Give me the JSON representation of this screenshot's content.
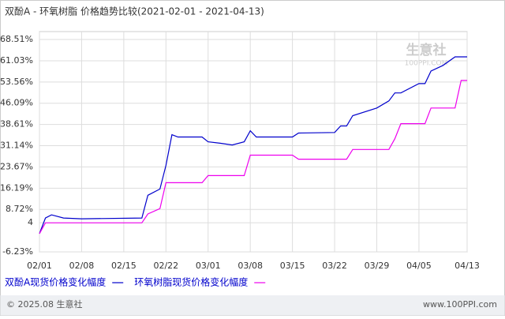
{
  "chart_data": {
    "type": "line",
    "title": "双酚A - 环氧树脂 价格趋势比较(2021-02-01 - 2021-04-13)",
    "watermark": "生意社",
    "watermark_sub": "100PPI.COM",
    "x": [
      "2021-02-01",
      "2021-02-02",
      "2021-02-03",
      "2021-02-05",
      "2021-02-08",
      "2021-02-18",
      "2021-02-19",
      "2021-02-21",
      "2021-02-22",
      "2021-02-23",
      "2021-02-24",
      "2021-02-28",
      "2021-03-01",
      "2021-03-03",
      "2021-03-05",
      "2021-03-07",
      "2021-03-08",
      "2021-03-09",
      "2021-03-15",
      "2021-03-16",
      "2021-03-22",
      "2021-03-23",
      "2021-03-24",
      "2021-03-25",
      "2021-03-29",
      "2021-03-31",
      "2021-04-01",
      "2021-04-02",
      "2021-04-05",
      "2021-04-06",
      "2021-04-07",
      "2021-04-09",
      "2021-04-11",
      "2021-04-12",
      "2021-04-13"
    ],
    "series": [
      {
        "name": "双酚A现货价格变化幅度",
        "color": "#0000cc",
        "values": [
          0.2,
          5.7,
          6.8,
          5.7,
          5.4,
          5.7,
          13.7,
          15.9,
          24.2,
          35.0,
          34.2,
          34.2,
          32.5,
          32.0,
          31.4,
          32.5,
          36.4,
          34.2,
          34.2,
          35.6,
          35.8,
          38.1,
          38.1,
          41.7,
          44.4,
          46.9,
          49.7,
          49.7,
          53.0,
          53.0,
          57.4,
          59.4,
          62.4,
          62.4,
          62.4
        ]
      },
      {
        "name": "环氧树脂现货价格变化幅度",
        "color": "#ee00ee",
        "values": [
          0.2,
          4.0,
          4.0,
          4.0,
          4.0,
          4.0,
          7.1,
          9.0,
          18.1,
          18.1,
          18.1,
          18.1,
          20.6,
          20.6,
          20.6,
          20.6,
          27.8,
          27.8,
          27.8,
          26.4,
          26.4,
          26.4,
          26.4,
          29.8,
          29.8,
          29.8,
          33.6,
          38.9,
          38.9,
          38.9,
          44.4,
          44.4,
          44.4,
          54.1,
          54.1
        ]
      }
    ],
    "xlim": [
      "2021-02-01",
      "2021-04-13"
    ],
    "xticks": [
      {
        "value": "2021-02-01",
        "label": "02/01"
      },
      {
        "value": "2021-02-08",
        "label": "02/08"
      },
      {
        "value": "2021-02-15",
        "label": "02/15"
      },
      {
        "value": "2021-02-22",
        "label": "02/22"
      },
      {
        "value": "2021-03-01",
        "label": "03/01"
      },
      {
        "value": "2021-03-08",
        "label": "03/08"
      },
      {
        "value": "2021-03-15",
        "label": "03/15"
      },
      {
        "value": "2021-03-22",
        "label": "03/22"
      },
      {
        "value": "2021-03-29",
        "label": "03/29"
      },
      {
        "value": "2021-04-05",
        "label": "04/05"
      },
      {
        "value": "2021-04-13",
        "label": "04/13"
      }
    ],
    "ylim": [
      -6.23,
      71.3
    ],
    "yticks": [
      {
        "value": 68.51,
        "label": "68.51%"
      },
      {
        "value": 61.03,
        "label": "61.03%"
      },
      {
        "value": 53.56,
        "label": "53.56%"
      },
      {
        "value": 46.09,
        "label": "46.09%"
      },
      {
        "value": 38.61,
        "label": "38.61%"
      },
      {
        "value": 31.14,
        "label": "31.14%"
      },
      {
        "value": 23.67,
        "label": "23.67%"
      },
      {
        "value": 16.19,
        "label": "16.19%"
      },
      {
        "value": 8.72,
        "label": "8.72%"
      },
      4,
      {
        "value": -6.23,
        "label": "-6.23%"
      }
    ],
    "grid": true,
    "footer_left": "© 2025.08 生意社",
    "footer_right": "www.100PPI.com"
  }
}
